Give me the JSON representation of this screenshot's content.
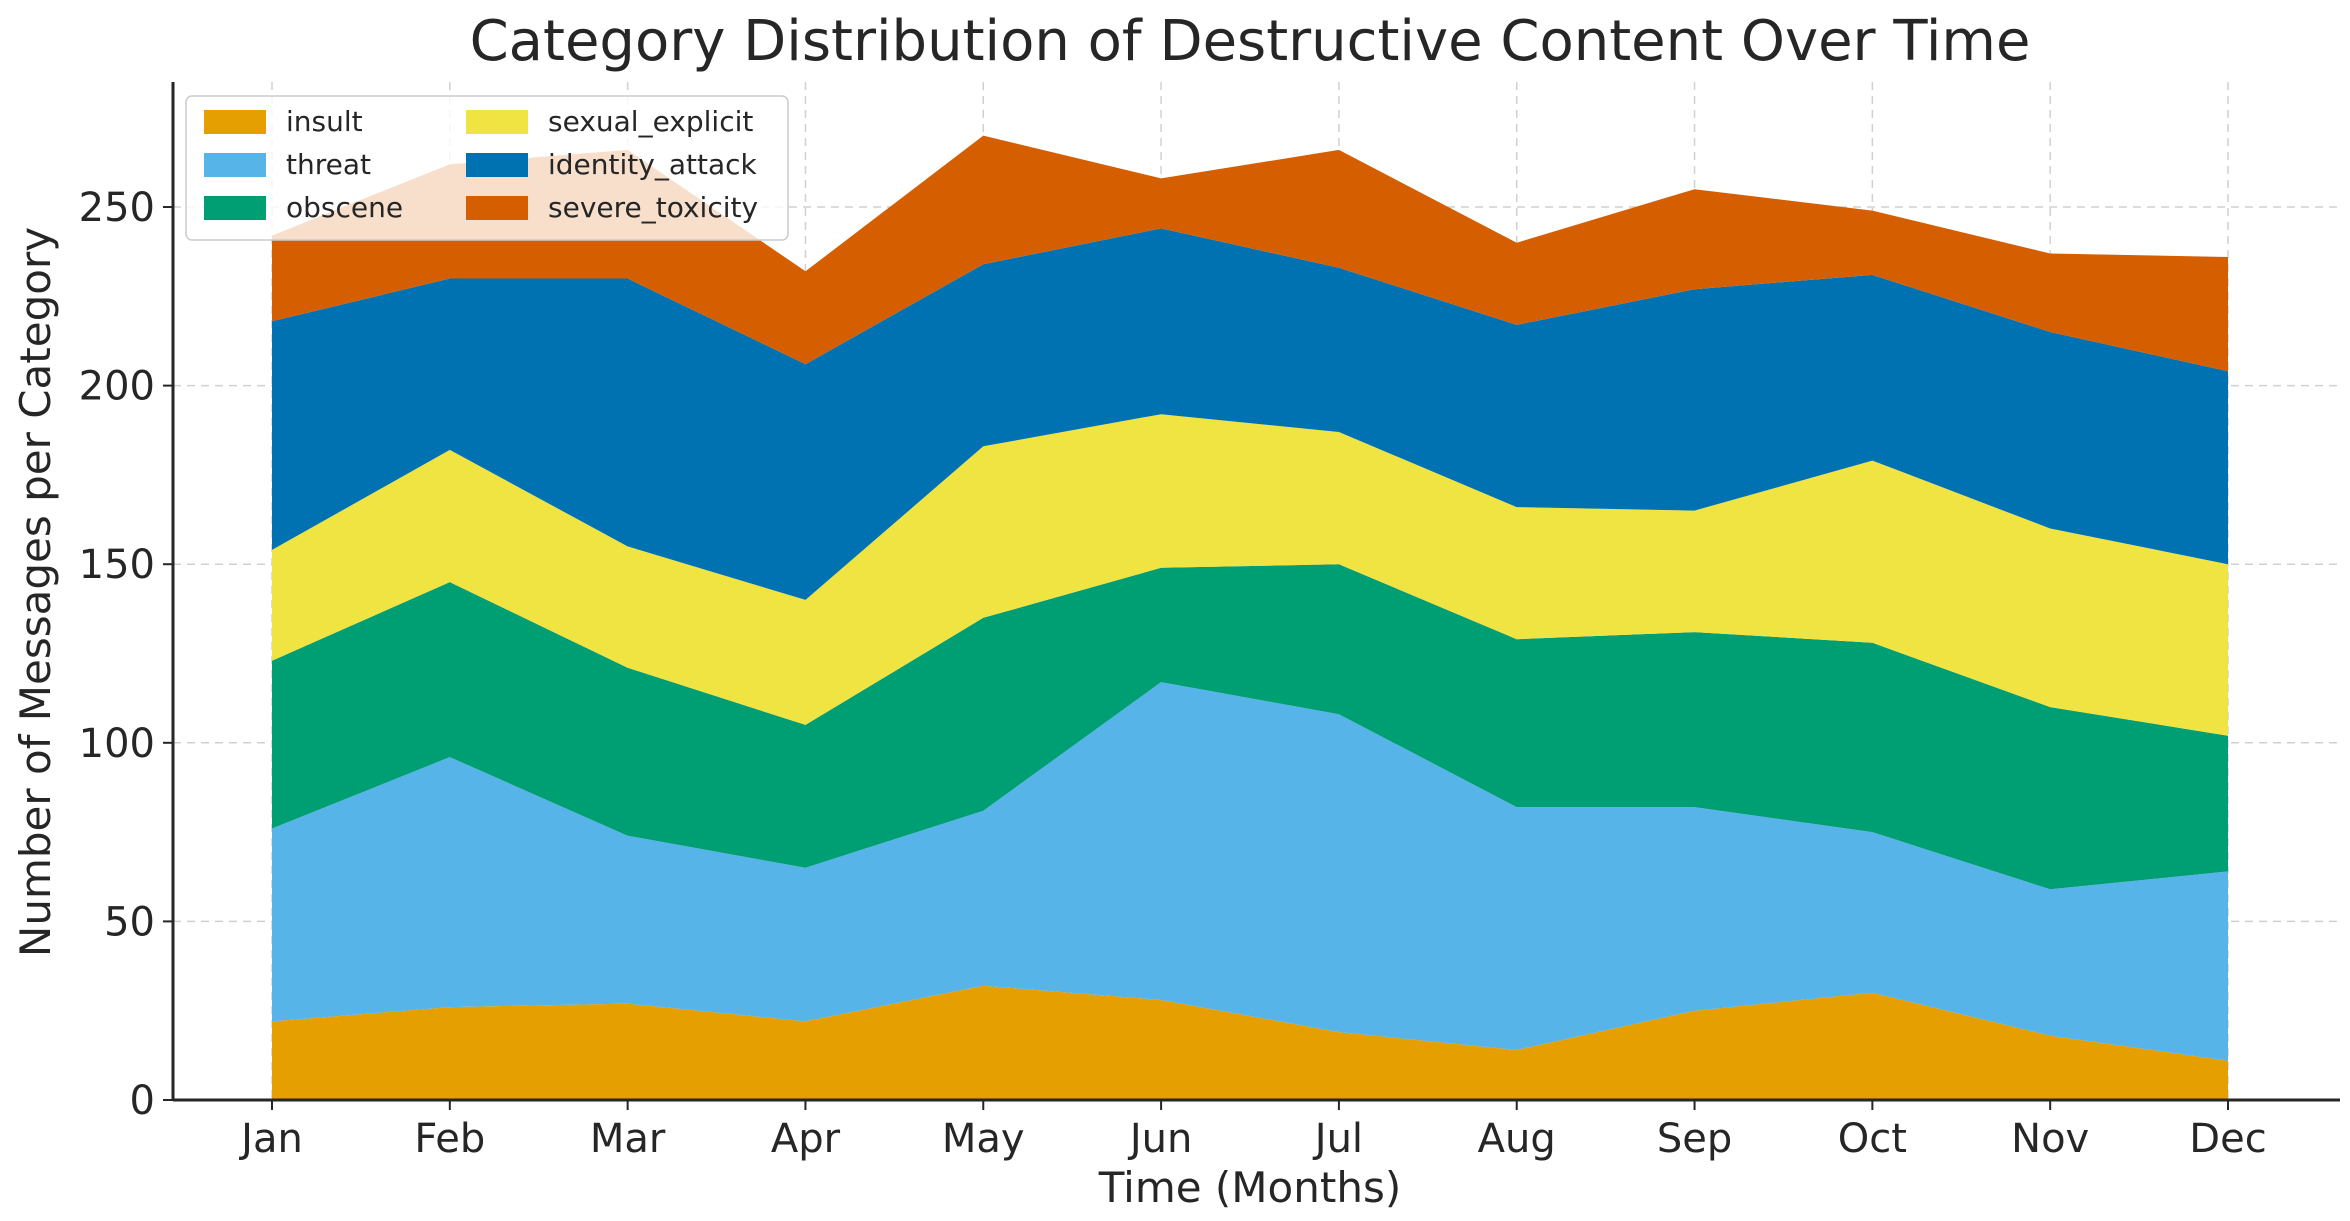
{
  "chart_data": {
    "type": "area",
    "stacked": true,
    "title": "Category Distribution of Destructive Content Over Time",
    "xlabel": "Time (Months)",
    "ylabel": "Number of Messages per Category",
    "categories": [
      "Jan",
      "Feb",
      "Mar",
      "Apr",
      "May",
      "Jun",
      "Jul",
      "Aug",
      "Sep",
      "Oct",
      "Nov",
      "Dec"
    ],
    "ylim": [
      0,
      285
    ],
    "yticks": [
      0,
      50,
      100,
      150,
      200,
      250
    ],
    "grid": true,
    "legend_position": "top-left",
    "series": [
      {
        "name": "insult",
        "color": "#E69F00",
        "values": [
          22,
          26,
          27,
          22,
          32,
          28,
          19,
          14,
          25,
          30,
          18,
          11
        ]
      },
      {
        "name": "threat",
        "color": "#56B4E9",
        "values": [
          54,
          70,
          47,
          43,
          49,
          89,
          89,
          68,
          57,
          45,
          41,
          53
        ]
      },
      {
        "name": "obscene",
        "color": "#009E73",
        "values": [
          47,
          49,
          47,
          40,
          54,
          32,
          42,
          47,
          49,
          53,
          51,
          38
        ]
      },
      {
        "name": "sexual_explicit",
        "color": "#F0E442",
        "values": [
          31,
          37,
          34,
          35,
          48,
          43,
          37,
          37,
          34,
          51,
          50,
          48
        ]
      },
      {
        "name": "identity_attack",
        "color": "#0072B2",
        "values": [
          64,
          48,
          75,
          66,
          51,
          52,
          46,
          51,
          62,
          52,
          55,
          54
        ]
      },
      {
        "name": "severe_toxicity",
        "color": "#D55E00",
        "values": [
          24,
          32,
          36,
          26,
          36,
          14,
          33,
          23,
          28,
          18,
          22,
          32
        ]
      }
    ]
  }
}
